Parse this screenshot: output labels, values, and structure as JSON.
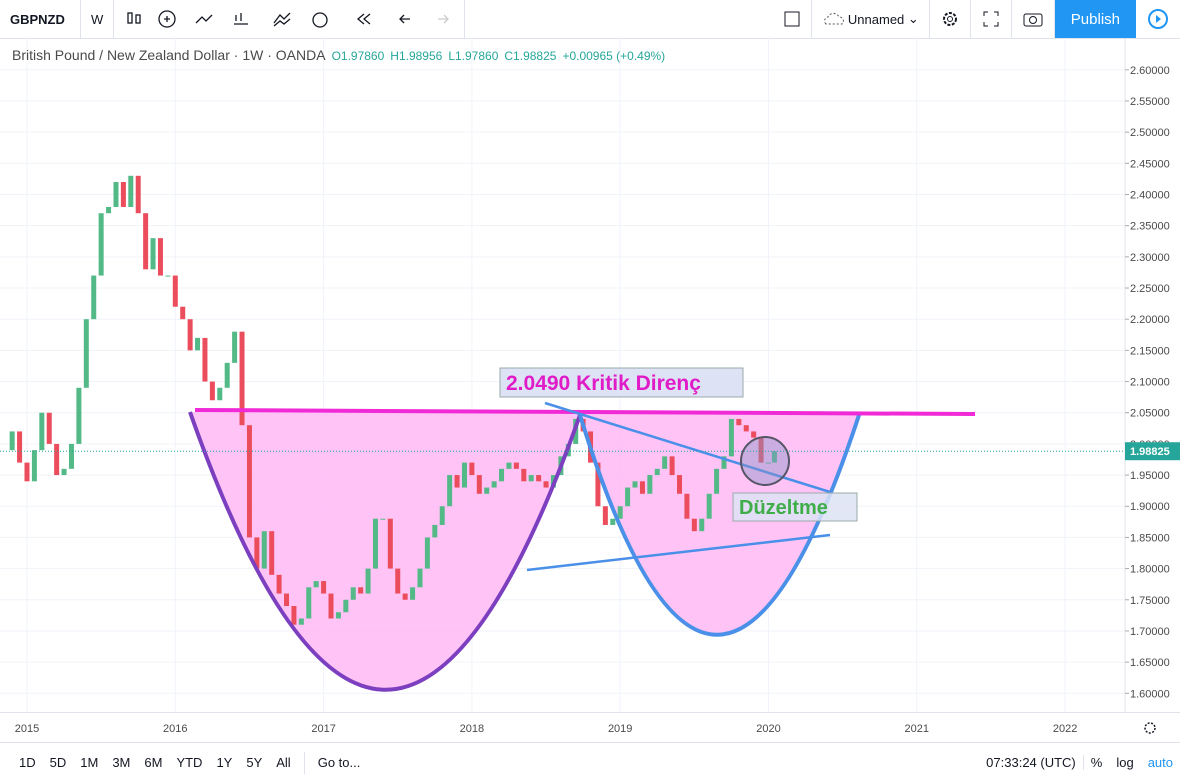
{
  "toolbar": {
    "symbol": "GBPNZD",
    "interval": "W",
    "layout_name": "Unnamed",
    "publish": "Publish"
  },
  "chart": {
    "header": {
      "title": "British Pound / New Zealand Dollar · 1W · OANDA",
      "open": "O1.97860",
      "high": "H1.98956",
      "low": "L1.97860",
      "close": "C1.98825",
      "change": "+0.00965 (+0.49%)"
    },
    "annotations": {
      "resistance": "2.0490 Kritik Direnç",
      "correction": "Düzeltme"
    },
    "last_price": 1.98825,
    "xlim": [
      2014.818,
      2022.404
    ],
    "xticks": [
      2015,
      2016,
      2017,
      2018,
      2019,
      2020,
      2021,
      2022
    ],
    "ylim": [
      1.57,
      2.651
    ],
    "yticks": [
      {
        "value": 1.6,
        "label": "1.60000"
      },
      {
        "value": 1.65,
        "label": "1.65000"
      },
      {
        "value": 1.7,
        "label": "1.70000"
      },
      {
        "value": 1.75,
        "label": "1.75000"
      },
      {
        "value": 1.8,
        "label": "1.80000"
      },
      {
        "value": 1.85,
        "label": "1.85000"
      },
      {
        "value": 1.9,
        "label": "1.90000"
      },
      {
        "value": 1.95,
        "label": "1.95000"
      },
      {
        "value": 2.0,
        "label": "2.00000"
      },
      {
        "value": 2.05,
        "label": "2.05000"
      },
      {
        "value": 2.1,
        "label": "2.10000"
      },
      {
        "value": 2.15,
        "label": "2.15000"
      },
      {
        "value": 2.2,
        "label": "2.20000"
      },
      {
        "value": 2.25,
        "label": "2.25000"
      },
      {
        "value": 2.3,
        "label": "2.30000"
      },
      {
        "value": 2.35,
        "label": "2.35000"
      },
      {
        "value": 2.4,
        "label": "2.40000"
      },
      {
        "value": 2.45,
        "label": "2.45000"
      },
      {
        "value": 2.5,
        "label": "2.50000"
      },
      {
        "value": 2.55,
        "label": "2.55000"
      },
      {
        "value": 2.6,
        "label": "2.60000"
      }
    ],
    "series": {
      "x": [
        2014.85,
        2014.9,
        2014.95,
        2015.0,
        2015.05,
        2015.1,
        2015.15,
        2015.2,
        2015.25,
        2015.3,
        2015.35,
        2015.4,
        2015.45,
        2015.5,
        2015.55,
        2015.6,
        2015.65,
        2015.7,
        2015.75,
        2015.8,
        2015.85,
        2015.9,
        2015.95,
        2016.0,
        2016.05,
        2016.1,
        2016.15,
        2016.2,
        2016.25,
        2016.3,
        2016.35,
        2016.4,
        2016.45,
        2016.5,
        2016.55,
        2016.6,
        2016.65,
        2016.7,
        2016.75,
        2016.8,
        2016.85,
        2016.9,
        2016.95,
        2017.0,
        2017.05,
        2017.1,
        2017.15,
        2017.2,
        2017.25,
        2017.3,
        2017.35,
        2017.4,
        2017.45,
        2017.5,
        2017.55,
        2017.6,
        2017.65,
        2017.7,
        2017.75,
        2017.8,
        2017.85,
        2017.9,
        2017.95,
        2018.0,
        2018.05,
        2018.1,
        2018.15,
        2018.2,
        2018.25,
        2018.3,
        2018.35,
        2018.4,
        2018.45,
        2018.5,
        2018.55,
        2018.6,
        2018.65,
        2018.7,
        2018.75,
        2018.8,
        2018.85,
        2018.9,
        2018.95,
        2019.0,
        2019.05,
        2019.1,
        2019.15,
        2019.2,
        2019.25,
        2019.3,
        2019.35,
        2019.4,
        2019.45,
        2019.5,
        2019.55,
        2019.6,
        2019.65,
        2019.7,
        2019.75,
        2019.8,
        2019.85,
        2019.9,
        2019.95,
        2020.0,
        2020.04
      ],
      "close": [
        1.99,
        2.02,
        1.97,
        1.94,
        1.99,
        2.05,
        2.0,
        1.95,
        1.96,
        2.0,
        2.09,
        2.2,
        2.27,
        2.37,
        2.38,
        2.42,
        2.38,
        2.43,
        2.37,
        2.28,
        2.33,
        2.27,
        2.27,
        2.22,
        2.2,
        2.15,
        2.17,
        2.1,
        2.07,
        2.09,
        2.13,
        2.18,
        2.03,
        1.85,
        1.8,
        1.86,
        1.79,
        1.76,
        1.74,
        1.71,
        1.72,
        1.77,
        1.78,
        1.76,
        1.72,
        1.73,
        1.75,
        1.77,
        1.76,
        1.8,
        1.88,
        1.88,
        1.8,
        1.76,
        1.75,
        1.77,
        1.8,
        1.85,
        1.87,
        1.9,
        1.95,
        1.93,
        1.97,
        1.95,
        1.92,
        1.93,
        1.94,
        1.96,
        1.97,
        1.96,
        1.94,
        1.95,
        1.94,
        1.93,
        1.95,
        1.98,
        2.0,
        2.04,
        2.02,
        1.97,
        1.9,
        1.87,
        1.88,
        1.9,
        1.93,
        1.94,
        1.92,
        1.95,
        1.96,
        1.98,
        1.95,
        1.92,
        1.88,
        1.86,
        1.88,
        1.92,
        1.96,
        1.98,
        2.04,
        2.03,
        2.02,
        2.01,
        1.97,
        1.97,
        1.988
      ]
    }
  },
  "bottom_bar": {
    "ranges": [
      "1D",
      "5D",
      "1M",
      "3M",
      "6M",
      "YTD",
      "1Y",
      "5Y",
      "All"
    ],
    "goto": "Go to...",
    "clock": "07:33:24 (UTC)",
    "percent": "%",
    "log": "log",
    "auto": "auto"
  }
}
